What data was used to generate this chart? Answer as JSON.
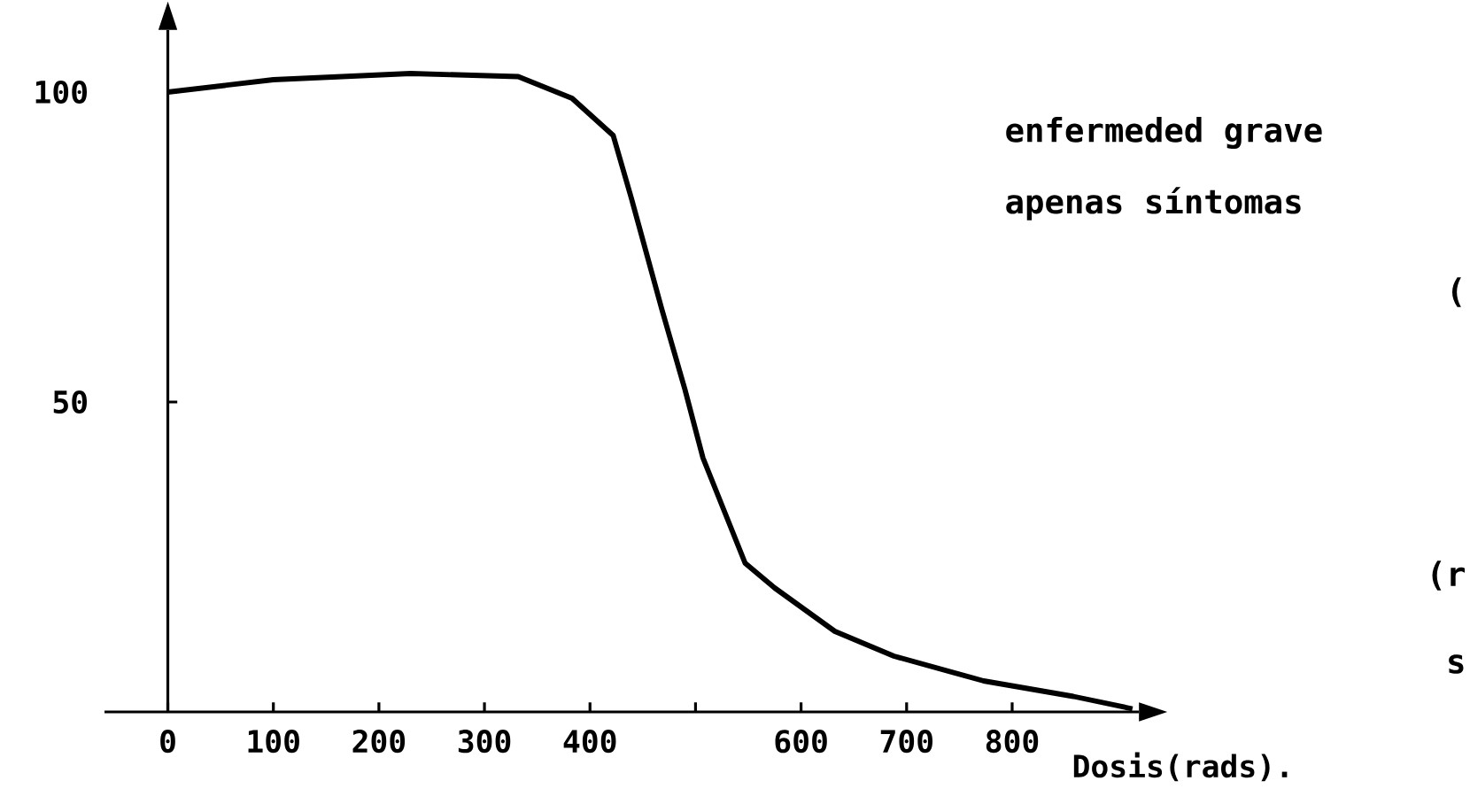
{
  "chart_data": {
    "type": "line",
    "xlabel": "Dosis(rads).",
    "x": [
      0,
      100,
      230,
      332,
      383,
      422,
      439,
      468,
      490,
      507,
      547,
      575,
      632,
      688,
      773,
      858,
      914
    ],
    "values": [
      100,
      102,
      103,
      102.5,
      99,
      93,
      83,
      65,
      52,
      41,
      24,
      20,
      13,
      9,
      5,
      2.5,
      0.5
    ],
    "color": "#000000",
    "marker": "none",
    "line_style": "solid",
    "xlim": [
      -60,
      920
    ],
    "ylim": [
      0,
      110
    ],
    "xticks": [
      0,
      100,
      200,
      300,
      400,
      {
        "value": 500,
        "label": null
      },
      600,
      700,
      800
    ],
    "yticks": [
      50,
      100
    ],
    "annotations": [
      "enfermeded grave",
      "apenas síntomas",
      "(",
      "(r",
      "s"
    ]
  }
}
